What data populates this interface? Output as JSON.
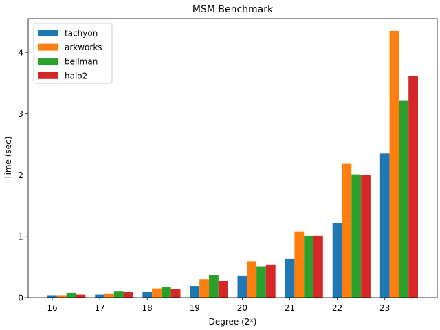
{
  "chart_data": {
    "type": "bar",
    "title": "MSM Benchmark",
    "xlabel": "Degree (2ˣ)",
    "ylabel": "Time (sec)",
    "categories": [
      "16",
      "17",
      "18",
      "19",
      "20",
      "21",
      "22",
      "23"
    ],
    "ylim": [
      0,
      4.55
    ],
    "yticks": [
      0,
      1,
      2,
      3,
      4
    ],
    "grid": false,
    "legend_position": "top-left",
    "series": [
      {
        "name": "tachyon",
        "color": "#1f77b4",
        "values": [
          0.04,
          0.05,
          0.1,
          0.19,
          0.36,
          0.64,
          1.22,
          2.35
        ]
      },
      {
        "name": "arkworks",
        "color": "#ff7f0e",
        "values": [
          0.04,
          0.07,
          0.15,
          0.3,
          0.59,
          1.08,
          2.19,
          4.35
        ]
      },
      {
        "name": "bellman",
        "color": "#2ca02c",
        "values": [
          0.08,
          0.11,
          0.18,
          0.37,
          0.51,
          1.01,
          2.01,
          3.21
        ]
      },
      {
        "name": "halo2",
        "color": "#d62728",
        "values": [
          0.05,
          0.09,
          0.14,
          0.28,
          0.54,
          1.01,
          2.0,
          3.62
        ]
      }
    ]
  }
}
